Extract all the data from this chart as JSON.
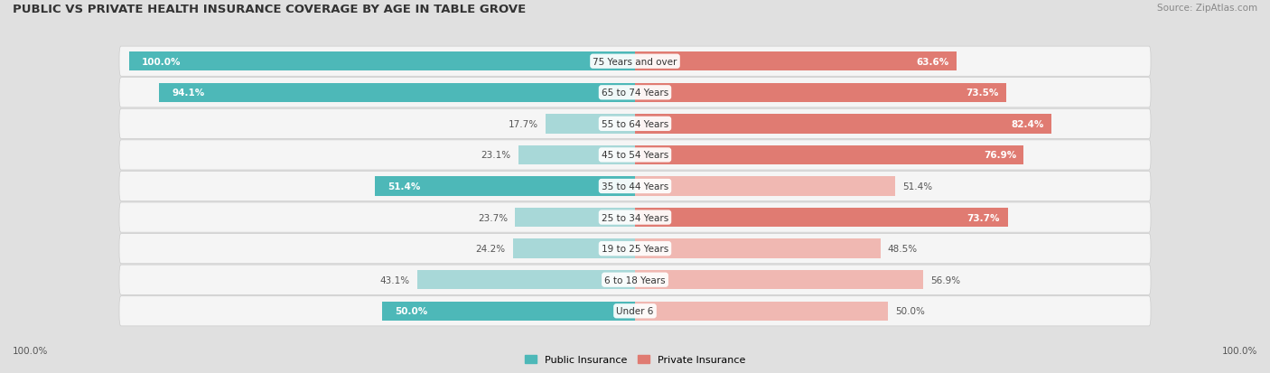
{
  "title": "PUBLIC VS PRIVATE HEALTH INSURANCE COVERAGE BY AGE IN TABLE GROVE",
  "source": "Source: ZipAtlas.com",
  "categories": [
    "Under 6",
    "6 to 18 Years",
    "19 to 25 Years",
    "25 to 34 Years",
    "35 to 44 Years",
    "45 to 54 Years",
    "55 to 64 Years",
    "65 to 74 Years",
    "75 Years and over"
  ],
  "public_values": [
    50.0,
    43.1,
    24.2,
    23.7,
    51.4,
    23.1,
    17.7,
    94.1,
    100.0
  ],
  "private_values": [
    50.0,
    56.9,
    48.5,
    73.7,
    51.4,
    76.9,
    82.4,
    73.5,
    63.6
  ],
  "public_color": "#4db8b8",
  "private_color": "#e07b72",
  "public_color_light": "#a8d8d8",
  "private_color_light": "#f0b8b2",
  "bg_color": "#e0e0e0",
  "row_bg_color": "#f5f5f5",
  "title_color": "#333333",
  "label_color": "#555555",
  "bar_height": 0.62,
  "max_val": 100.0,
  "pub_label_threshold": 50.0,
  "priv_label_threshold": 60.0,
  "figsize": [
    14.06,
    4.14
  ],
  "dpi": 100
}
